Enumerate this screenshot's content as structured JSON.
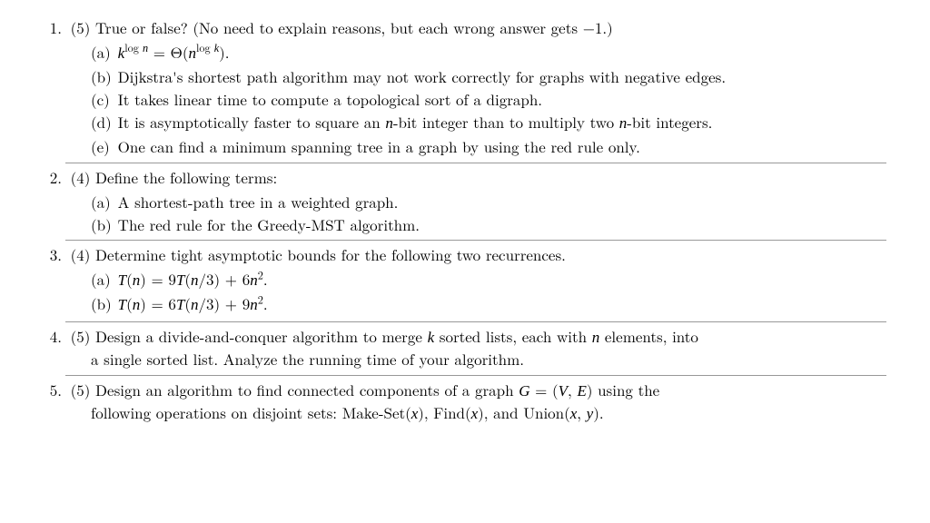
{
  "q1": {
    "num": "1.",
    "stem_prefix": "(5) True or false? (No need to explain reasons, but each wrong answer gets ",
    "stem_neg1": "−1",
    "stem_suffix": ".)",
    "a_label": "(a)",
    "b_label": "(b)",
    "b_text": "Dijkstra's shortest path algorithm may not work correctly for graphs with negative edges.",
    "c_label": "(c)",
    "c_text": "It takes linear time to compute a topological sort of a digraph.",
    "d_label": "(d)",
    "e_label": "(e)",
    "e_text": "One can find a minimum spanning tree in a graph by using the red rule only."
  },
  "q2": {
    "num": "2.",
    "stem": "(4) Define the following terms:",
    "a_label": "(a)",
    "a_text": "A shortest-path tree in a weighted graph.",
    "b_label": "(b)",
    "b_text": "The red rule for the Greedy-MST algorithm."
  },
  "q3": {
    "num": "3.",
    "stem": "(4) Determine tight asymptotic bounds for the following two recurrences.",
    "a_label": "(a)",
    "b_label": "(b)"
  },
  "q4": {
    "num": "4.",
    "line1_before": "(5) Design a divide-and-conquer algorithm to merge ",
    "k": "k",
    "line1_mid": " sorted lists, each with ",
    "n": "n",
    "line1_after": " elements, into",
    "line2": "a single sorted list. Analyze the running time of your algorithm."
  },
  "q5": {
    "num": "5.",
    "line1_before": "(5) Design an algorithm to find connected components of a graph ",
    "G": "G",
    "eq": " = (",
    "V": "V",
    "comma": ", ",
    "E": "E",
    "paren": ") ",
    "line1_after": "using the",
    "line2_before": "following operations on disjoint sets: Make-Set(",
    "x1": "x",
    "mid1": "), Find(",
    "x2": "x",
    "mid2": "), and Union(",
    "x3": "x",
    "comma2": ", ",
    "y": "y",
    "end": ")."
  },
  "math": {
    "d_before": "It is asymptotically faster to square an ",
    "d_nbit1": "n",
    "d_mid": "-bit integer than to multiply two ",
    "d_nbit2": "n",
    "d_after": "-bit integers."
  }
}
